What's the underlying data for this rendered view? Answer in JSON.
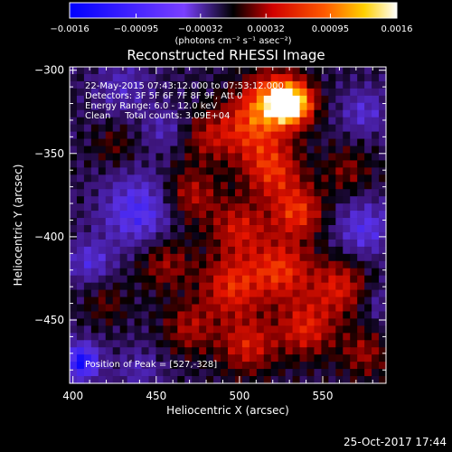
{
  "chart_data": {
    "type": "heatmap",
    "title": "Reconstructed RHESSI Image",
    "xlabel": "Heliocentric X (arcsec)",
    "ylabel": "Heliocentric Y (arcsec)",
    "xlim": [
      398,
      588
    ],
    "ylim": [
      -488,
      -298
    ],
    "x_ticks": [
      "400",
      "450",
      "500",
      "550"
    ],
    "y_ticks": [
      "-300",
      "-350",
      "-400",
      "-450"
    ],
    "colorbar": {
      "range": [
        -0.0016,
        0.0016
      ],
      "ticks": [
        "-0.0016",
        "-0.00095",
        "-0.00032",
        "0.00032",
        "0.00095",
        "0.0016"
      ],
      "unit_label": "(photons cm⁻² s⁻¹ asec⁻²)"
    },
    "info_lines": [
      "22-May-2015 07:43:12.000 to 07:53:12.000",
      "Detectors: 3F 5F 6F 7F 8F 9F, Att 0",
      "Energy Range: 6.0 - 12.0 keV",
      "Clean     Total counts: 3.09E+04"
    ],
    "peak_label": "Position of Peak = [527,-328]",
    "peak_position": [
      527,
      -328
    ],
    "grid": false,
    "sources": [
      {
        "x": 532,
        "y": -320,
        "value": 0.0016,
        "sigma": 9
      },
      {
        "x": 520,
        "y": -318,
        "value": 0.0011,
        "sigma": 12
      },
      {
        "x": 505,
        "y": -335,
        "value": 0.00085,
        "sigma": 14
      },
      {
        "x": 520,
        "y": -360,
        "value": 0.0009,
        "sigma": 12
      },
      {
        "x": 535,
        "y": -385,
        "value": 0.00095,
        "sigma": 11
      },
      {
        "x": 470,
        "y": -375,
        "value": 0.0007,
        "sigma": 12
      },
      {
        "x": 500,
        "y": -395,
        "value": 0.00075,
        "sigma": 12
      },
      {
        "x": 455,
        "y": -415,
        "value": 0.0006,
        "sigma": 12
      },
      {
        "x": 495,
        "y": -430,
        "value": 0.0009,
        "sigma": 13
      },
      {
        "x": 525,
        "y": -420,
        "value": 0.00095,
        "sigma": 13
      },
      {
        "x": 560,
        "y": -430,
        "value": 0.0008,
        "sigma": 12
      },
      {
        "x": 540,
        "y": -455,
        "value": 0.00085,
        "sigma": 12
      },
      {
        "x": 505,
        "y": -465,
        "value": 0.0008,
        "sigma": 12
      },
      {
        "x": 470,
        "y": -455,
        "value": 0.0006,
        "sigma": 11
      },
      {
        "x": 575,
        "y": -470,
        "value": 0.00055,
        "sigma": 10
      },
      {
        "x": 480,
        "y": -340,
        "value": 0.0005,
        "sigma": 10
      },
      {
        "x": 565,
        "y": -360,
        "value": 0.00045,
        "sigma": 10
      },
      {
        "x": 425,
        "y": -345,
        "value": 0.00035,
        "sigma": 9
      },
      {
        "x": 420,
        "y": -440,
        "value": 0.00035,
        "sigma": 9
      },
      {
        "x": 440,
        "y": -385,
        "value": -0.00085,
        "sigma": 16
      },
      {
        "x": 405,
        "y": -475,
        "value": -0.0012,
        "sigma": 8
      },
      {
        "x": 575,
        "y": -395,
        "value": -0.0007,
        "sigma": 12
      },
      {
        "x": 575,
        "y": -325,
        "value": -0.00055,
        "sigma": 10
      },
      {
        "x": 430,
        "y": -310,
        "value": -0.00045,
        "sigma": 12
      },
      {
        "x": 455,
        "y": -335,
        "value": -0.0004,
        "sigma": 9
      },
      {
        "x": 410,
        "y": -415,
        "value": -0.0006,
        "sigma": 9
      },
      {
        "x": 440,
        "y": -480,
        "value": -0.0004,
        "sigma": 10
      },
      {
        "x": 585,
        "y": -440,
        "value": -0.00035,
        "sigma": 8
      }
    ]
  },
  "footer": {
    "timestamp": "25-Oct-2017 17:44"
  }
}
